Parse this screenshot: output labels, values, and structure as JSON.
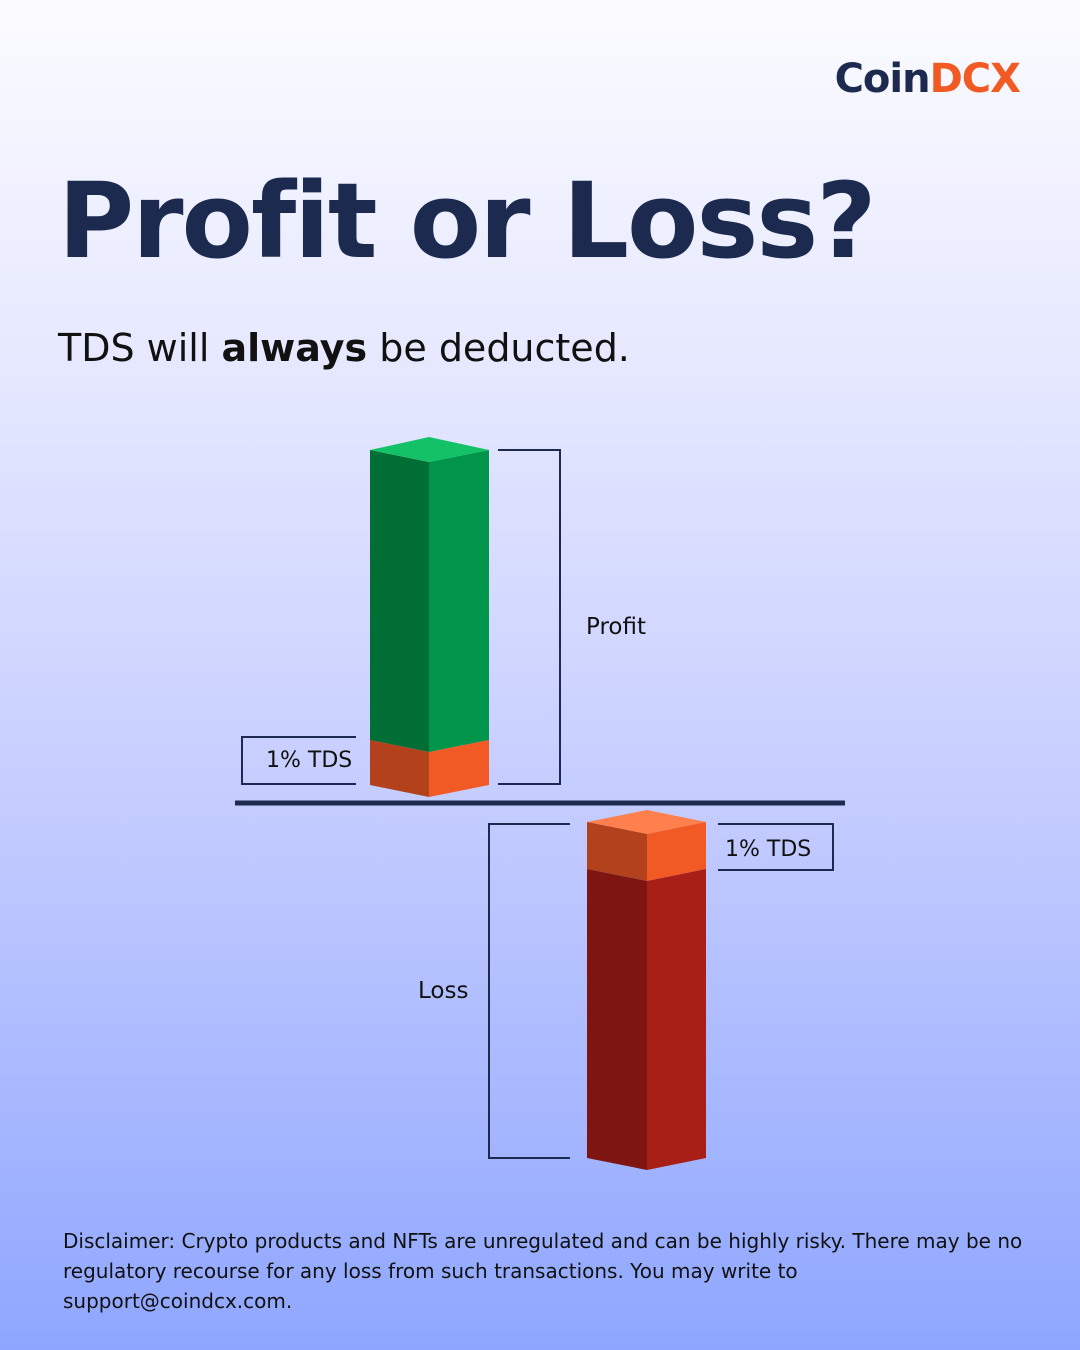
{
  "logo": {
    "part1": "Coin",
    "part2": "DCX"
  },
  "title": "Profit or Loss?",
  "subtitle": {
    "before": "TDS will ",
    "bold": "always",
    "after": " be deducted."
  },
  "diagram": {
    "profit_label": "Profit",
    "loss_label": "Loss",
    "tds_label_profit": "1% TDS",
    "tds_label_loss": "1% TDS"
  },
  "colors": {
    "navy": "#1b2a4e",
    "brand_orange": "#f15a22",
    "profit_green": "#00954a",
    "loss_red": "#a81f17"
  },
  "disclaimer": "Disclaimer: Crypto products and NFTs are unregulated and can be highly risky. There may be no regulatory recourse for any loss from such transactions. You may write to support@coindcx.com."
}
